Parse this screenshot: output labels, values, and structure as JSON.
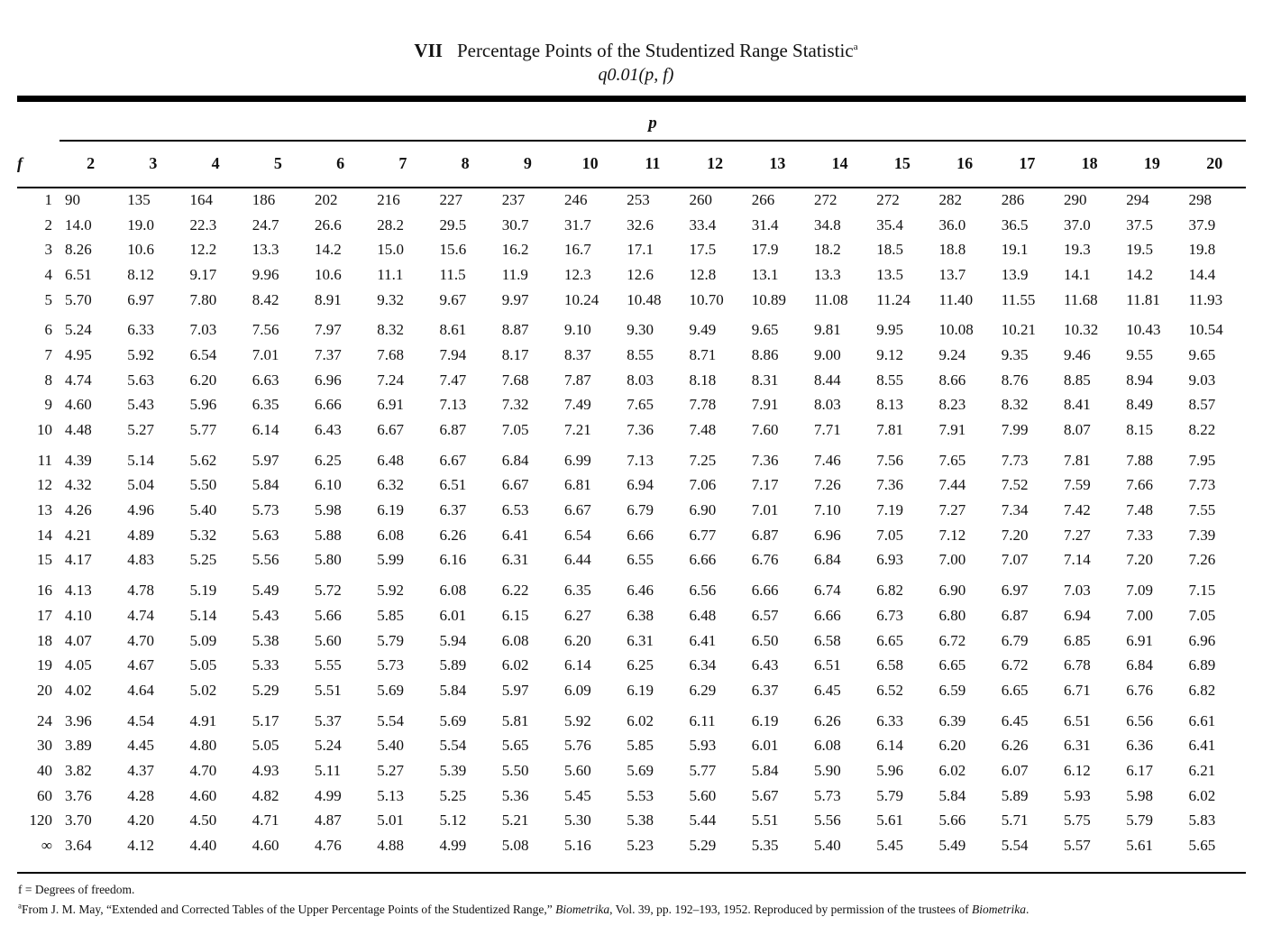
{
  "header": {
    "numeral": "VII",
    "title": "Percentage Points of the Studentized Range Statistic",
    "title_mark": "a",
    "subtitle": "q0.01(p, f)"
  },
  "table": {
    "p_label": "p",
    "f_label": "f",
    "columns": [
      "2",
      "3",
      "4",
      "5",
      "6",
      "7",
      "8",
      "9",
      "10",
      "11",
      "12",
      "13",
      "14",
      "15",
      "16",
      "17",
      "18",
      "19",
      "20"
    ],
    "groups": [
      [
        [
          "1",
          "90",
          "135",
          "164",
          "186",
          "202",
          "216",
          "227",
          "237",
          "246",
          "253",
          "260",
          "266",
          "272",
          "272",
          "282",
          "286",
          "290",
          "294",
          "298"
        ],
        [
          "2",
          "14.0",
          "19.0",
          "22.3",
          "24.7",
          "26.6",
          "28.2",
          "29.5",
          "30.7",
          "31.7",
          "32.6",
          "33.4",
          "31.4",
          "34.8",
          "35.4",
          "36.0",
          "36.5",
          "37.0",
          "37.5",
          "37.9"
        ],
        [
          "3",
          "8.26",
          "10.6",
          "12.2",
          "13.3",
          "14.2",
          "15.0",
          "15.6",
          "16.2",
          "16.7",
          "17.1",
          "17.5",
          "17.9",
          "18.2",
          "18.5",
          "18.8",
          "19.1",
          "19.3",
          "19.5",
          "19.8"
        ],
        [
          "4",
          "6.51",
          "8.12",
          "9.17",
          "9.96",
          "10.6",
          "11.1",
          "11.5",
          "11.9",
          "12.3",
          "12.6",
          "12.8",
          "13.1",
          "13.3",
          "13.5",
          "13.7",
          "13.9",
          "14.1",
          "14.2",
          "14.4"
        ],
        [
          "5",
          "5.70",
          "6.97",
          "7.80",
          "8.42",
          "8.91",
          "9.32",
          "9.67",
          "9.97",
          "10.24",
          "10.48",
          "10.70",
          "10.89",
          "11.08",
          "11.24",
          "11.40",
          "11.55",
          "11.68",
          "11.81",
          "11.93"
        ]
      ],
      [
        [
          "6",
          "5.24",
          "6.33",
          "7.03",
          "7.56",
          "7.97",
          "8.32",
          "8.61",
          "8.87",
          "9.10",
          "9.30",
          "9.49",
          "9.65",
          "9.81",
          "9.95",
          "10.08",
          "10.21",
          "10.32",
          "10.43",
          "10.54"
        ],
        [
          "7",
          "4.95",
          "5.92",
          "6.54",
          "7.01",
          "7.37",
          "7.68",
          "7.94",
          "8.17",
          "8.37",
          "8.55",
          "8.71",
          "8.86",
          "9.00",
          "9.12",
          "9.24",
          "9.35",
          "9.46",
          "9.55",
          "9.65"
        ],
        [
          "8",
          "4.74",
          "5.63",
          "6.20",
          "6.63",
          "6.96",
          "7.24",
          "7.47",
          "7.68",
          "7.87",
          "8.03",
          "8.18",
          "8.31",
          "8.44",
          "8.55",
          "8.66",
          "8.76",
          "8.85",
          "8.94",
          "9.03"
        ],
        [
          "9",
          "4.60",
          "5.43",
          "5.96",
          "6.35",
          "6.66",
          "6.91",
          "7.13",
          "7.32",
          "7.49",
          "7.65",
          "7.78",
          "7.91",
          "8.03",
          "8.13",
          "8.23",
          "8.32",
          "8.41",
          "8.49",
          "8.57"
        ],
        [
          "10",
          "4.48",
          "5.27",
          "5.77",
          "6.14",
          "6.43",
          "6.67",
          "6.87",
          "7.05",
          "7.21",
          "7.36",
          "7.48",
          "7.60",
          "7.71",
          "7.81",
          "7.91",
          "7.99",
          "8.07",
          "8.15",
          "8.22"
        ]
      ],
      [
        [
          "11",
          "4.39",
          "5.14",
          "5.62",
          "5.97",
          "6.25",
          "6.48",
          "6.67",
          "6.84",
          "6.99",
          "7.13",
          "7.25",
          "7.36",
          "7.46",
          "7.56",
          "7.65",
          "7.73",
          "7.81",
          "7.88",
          "7.95"
        ],
        [
          "12",
          "4.32",
          "5.04",
          "5.50",
          "5.84",
          "6.10",
          "6.32",
          "6.51",
          "6.67",
          "6.81",
          "6.94",
          "7.06",
          "7.17",
          "7.26",
          "7.36",
          "7.44",
          "7.52",
          "7.59",
          "7.66",
          "7.73"
        ],
        [
          "13",
          "4.26",
          "4.96",
          "5.40",
          "5.73",
          "5.98",
          "6.19",
          "6.37",
          "6.53",
          "6.67",
          "6.79",
          "6.90",
          "7.01",
          "7.10",
          "7.19",
          "7.27",
          "7.34",
          "7.42",
          "7.48",
          "7.55"
        ],
        [
          "14",
          "4.21",
          "4.89",
          "5.32",
          "5.63",
          "5.88",
          "6.08",
          "6.26",
          "6.41",
          "6.54",
          "6.66",
          "6.77",
          "6.87",
          "6.96",
          "7.05",
          "7.12",
          "7.20",
          "7.27",
          "7.33",
          "7.39"
        ],
        [
          "15",
          "4.17",
          "4.83",
          "5.25",
          "5.56",
          "5.80",
          "5.99",
          "6.16",
          "6.31",
          "6.44",
          "6.55",
          "6.66",
          "6.76",
          "6.84",
          "6.93",
          "7.00",
          "7.07",
          "7.14",
          "7.20",
          "7.26"
        ]
      ],
      [
        [
          "16",
          "4.13",
          "4.78",
          "5.19",
          "5.49",
          "5.72",
          "5.92",
          "6.08",
          "6.22",
          "6.35",
          "6.46",
          "6.56",
          "6.66",
          "6.74",
          "6.82",
          "6.90",
          "6.97",
          "7.03",
          "7.09",
          "7.15"
        ],
        [
          "17",
          "4.10",
          "4.74",
          "5.14",
          "5.43",
          "5.66",
          "5.85",
          "6.01",
          "6.15",
          "6.27",
          "6.38",
          "6.48",
          "6.57",
          "6.66",
          "6.73",
          "6.80",
          "6.87",
          "6.94",
          "7.00",
          "7.05"
        ],
        [
          "18",
          "4.07",
          "4.70",
          "5.09",
          "5.38",
          "5.60",
          "5.79",
          "5.94",
          "6.08",
          "6.20",
          "6.31",
          "6.41",
          "6.50",
          "6.58",
          "6.65",
          "6.72",
          "6.79",
          "6.85",
          "6.91",
          "6.96"
        ],
        [
          "19",
          "4.05",
          "4.67",
          "5.05",
          "5.33",
          "5.55",
          "5.73",
          "5.89",
          "6.02",
          "6.14",
          "6.25",
          "6.34",
          "6.43",
          "6.51",
          "6.58",
          "6.65",
          "6.72",
          "6.78",
          "6.84",
          "6.89"
        ],
        [
          "20",
          "4.02",
          "4.64",
          "5.02",
          "5.29",
          "5.51",
          "5.69",
          "5.84",
          "5.97",
          "6.09",
          "6.19",
          "6.29",
          "6.37",
          "6.45",
          "6.52",
          "6.59",
          "6.65",
          "6.71",
          "6.76",
          "6.82"
        ]
      ],
      [
        [
          "24",
          "3.96",
          "4.54",
          "4.91",
          "5.17",
          "5.37",
          "5.54",
          "5.69",
          "5.81",
          "5.92",
          "6.02",
          "6.11",
          "6.19",
          "6.26",
          "6.33",
          "6.39",
          "6.45",
          "6.51",
          "6.56",
          "6.61"
        ],
        [
          "30",
          "3.89",
          "4.45",
          "4.80",
          "5.05",
          "5.24",
          "5.40",
          "5.54",
          "5.65",
          "5.76",
          "5.85",
          "5.93",
          "6.01",
          "6.08",
          "6.14",
          "6.20",
          "6.26",
          "6.31",
          "6.36",
          "6.41"
        ],
        [
          "40",
          "3.82",
          "4.37",
          "4.70",
          "4.93",
          "5.11",
          "5.27",
          "5.39",
          "5.50",
          "5.60",
          "5.69",
          "5.77",
          "5.84",
          "5.90",
          "5.96",
          "6.02",
          "6.07",
          "6.12",
          "6.17",
          "6.21"
        ],
        [
          "60",
          "3.76",
          "4.28",
          "4.60",
          "4.82",
          "4.99",
          "5.13",
          "5.25",
          "5.36",
          "5.45",
          "5.53",
          "5.60",
          "5.67",
          "5.73",
          "5.79",
          "5.84",
          "5.89",
          "5.93",
          "5.98",
          "6.02"
        ],
        [
          "120",
          "3.70",
          "4.20",
          "4.50",
          "4.71",
          "4.87",
          "5.01",
          "5.12",
          "5.21",
          "5.30",
          "5.38",
          "5.44",
          "5.51",
          "5.56",
          "5.61",
          "5.66",
          "5.71",
          "5.75",
          "5.79",
          "5.83"
        ],
        [
          "∞",
          "3.64",
          "4.12",
          "4.40",
          "4.60",
          "4.76",
          "4.88",
          "4.99",
          "5.08",
          "5.16",
          "5.23",
          "5.29",
          "5.35",
          "5.40",
          "5.45",
          "5.49",
          "5.54",
          "5.57",
          "5.61",
          "5.65"
        ]
      ]
    ]
  },
  "footnotes": {
    "f_def": "f = Degrees of freedom.",
    "mark": "a",
    "source_pre": "From J. M. May, “Extended and Corrected Tables of the Upper Percentage Points of the Studentized Range,” ",
    "source_journal": "Biometrika",
    "source_mid": ", Vol. 39, pp. 192–193, 1952. Reproduced by permission of the trustees of ",
    "source_journal2": "Biometrika",
    "source_end": "."
  }
}
